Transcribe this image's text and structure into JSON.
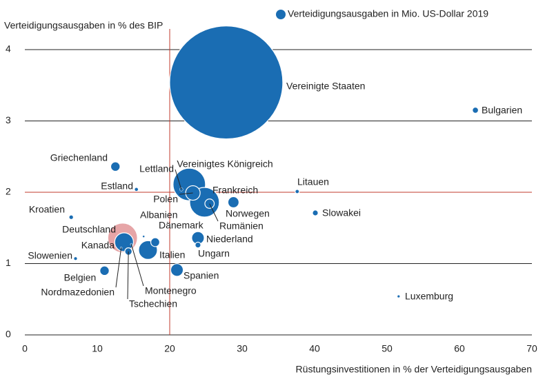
{
  "chart_data": {
    "type": "scatter",
    "y_label": "Verteidigungsausgaben  in % des BIP",
    "x_label": "Rüstungsinvestitionen in % der Verteidigungsausgaben",
    "series_name": "Verteidigungsausgaben in Mio. US-Dollar 2019",
    "color": "#1a6db3",
    "names": [
      "Vereinigte Staaten",
      "Vereinigtes Königreich",
      "Deutschland",
      "Frankreich",
      "Italien",
      "Kanada",
      "Spanien",
      "Niederland",
      "Polen",
      "Norwegen",
      "Griechenland",
      "Rumänien",
      "Dänemark",
      "Belgien",
      "Tschechien",
      "Bulgarien",
      "Slowakei",
      "Ungarn",
      "Litauen",
      "Kroatien",
      "Estland",
      "Lettland",
      "Slowenien",
      "Luxemburg",
      "Albanien",
      "Nordmazedonien",
      "Montenegro"
    ],
    "x": [
      27.8,
      22.7,
      13.5,
      24.8,
      17.0,
      13.7,
      21.0,
      23.9,
      23.2,
      28.8,
      12.5,
      25.5,
      18.0,
      11.0,
      14.3,
      62.2,
      40.1,
      23.9,
      37.6,
      6.4,
      15.4,
      21.6,
      7.0,
      51.6,
      16.4,
      13.3,
      14.7
    ],
    "values": [
      3.54,
      2.11,
      1.36,
      1.86,
      1.19,
      1.3,
      0.91,
      1.36,
      1.99,
      1.86,
      2.36,
      1.84,
      1.3,
      0.9,
      1.17,
      3.15,
      1.71,
      1.26,
      2.01,
      1.65,
      2.04,
      2.04,
      1.07,
      0.54,
      1.38,
      1.22,
      1.27
    ],
    "sizes": [
      730000,
      60000,
      50000,
      50000,
      20000,
      20000,
      9000,
      9000,
      12000,
      7000,
      5000,
      5000,
      4500,
      5000,
      3000,
      2100,
      1900,
      1900,
      1000,
      900,
      700,
      700,
      600,
      400,
      200,
      150,
      80
    ],
    "colors": [
      "#1a6db3",
      "#1a6db3",
      "#e6a5a7",
      "#1a6db3",
      "#1a6db3",
      "#1a6db3",
      "#1a6db3",
      "#1a6db3",
      "#1a6db3",
      "#1a6db3",
      "#1a6db3",
      "#1a6db3",
      "#1a6db3",
      "#1a6db3",
      "#1a6db3",
      "#1a6db3",
      "#1a6db3",
      "#1a6db3",
      "#1a6db3",
      "#1a6db3",
      "#1a6db3",
      "#1a6db3",
      "#1a6db3",
      "#1a6db3",
      "#1a6db3",
      "#1a6db3",
      "#1a6db3"
    ],
    "highlight_label_color": "#d0675f",
    "xlim": [
      0,
      70
    ],
    "xticks": [
      0,
      10,
      20,
      30,
      40,
      50,
      60,
      70
    ],
    "ylim": [
      0,
      4
    ],
    "yticks": [
      0,
      1,
      2,
      3,
      4
    ],
    "grid": true,
    "reference_lines": {
      "x": 20,
      "y": 2,
      "color": "#c0392b"
    }
  }
}
